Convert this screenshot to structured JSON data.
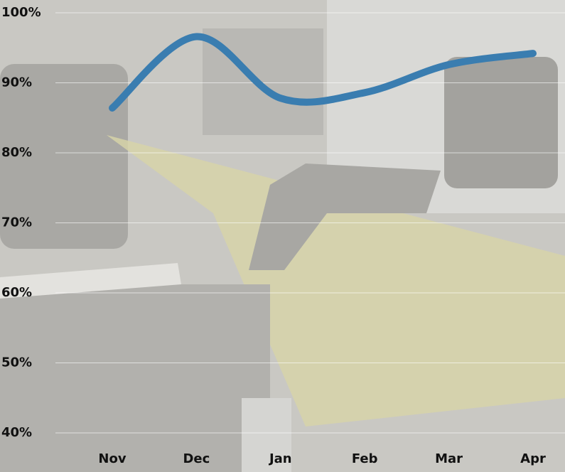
{
  "chart_data": {
    "type": "line",
    "categories": [
      "Nov",
      "Dec",
      "Jan",
      "Feb",
      "Mar",
      "Apr"
    ],
    "values": [
      86.4,
      96.6,
      87.8,
      88.6,
      92.6,
      94.2
    ],
    "color": "#3a7db0",
    "smooth": true,
    "ylim": [
      40,
      100
    ],
    "yticks": [
      {
        "value": 40,
        "label": "40%"
      },
      {
        "value": 50,
        "label": "50%"
      },
      {
        "value": 60,
        "label": "60%"
      },
      {
        "value": 70,
        "label": "70%"
      },
      {
        "value": 80,
        "label": "80%"
      },
      {
        "value": 90,
        "label": "90%"
      },
      {
        "value": 100,
        "label": "100%"
      }
    ],
    "grid": true
  }
}
